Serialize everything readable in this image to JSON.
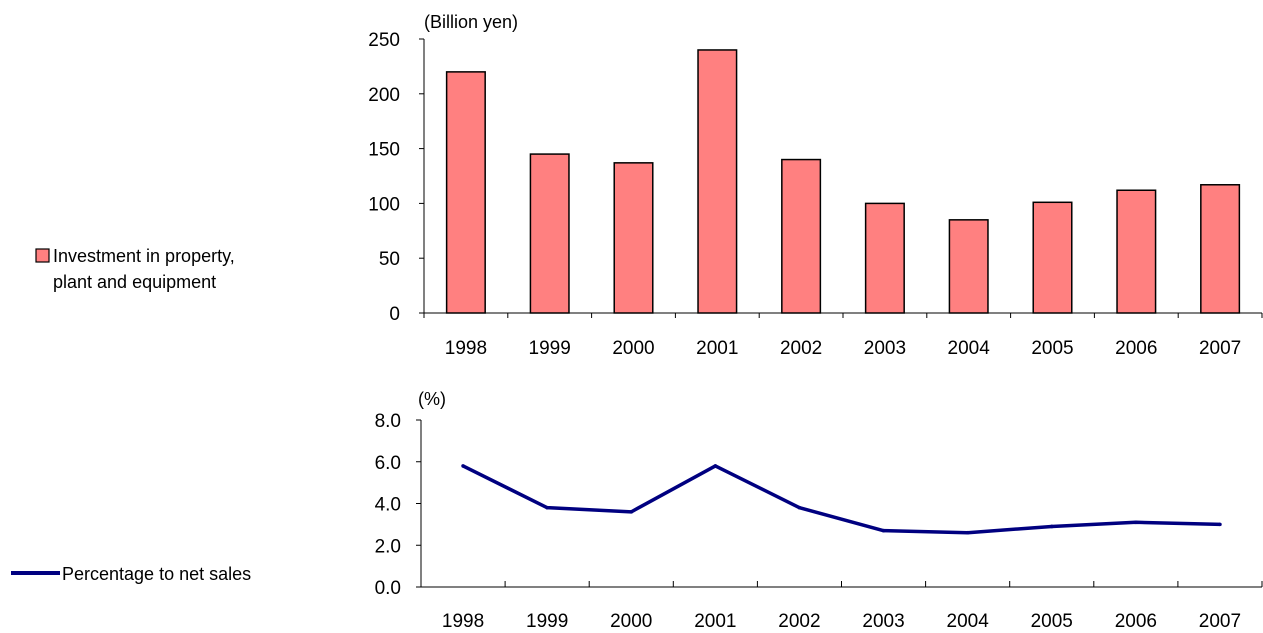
{
  "chart_data": [
    {
      "type": "bar",
      "unit_label": "(Billion yen)",
      "categories": [
        "1998",
        "1999",
        "2000",
        "2001",
        "2002",
        "2003",
        "2004",
        "2005",
        "2006",
        "2007"
      ],
      "series": [
        {
          "name": "Investment in property, plant and equipment",
          "name_lines": [
            "Investment in property,",
            "plant and equipment"
          ],
          "color": "#ff8080",
          "values": [
            220,
            145,
            137,
            240,
            140,
            100,
            85,
            101,
            112,
            117
          ]
        }
      ],
      "ylim": [
        0,
        250
      ],
      "yticks": [
        "0",
        "50",
        "100",
        "150",
        "200",
        "250"
      ],
      "legend_position": "left"
    },
    {
      "type": "line",
      "unit_label": "(%)",
      "categories": [
        "1998",
        "1999",
        "2000",
        "2001",
        "2002",
        "2003",
        "2004",
        "2005",
        "2006",
        "2007"
      ],
      "series": [
        {
          "name": "Percentage to net sales",
          "color": "#000080",
          "values": [
            5.8,
            3.8,
            3.6,
            5.8,
            3.8,
            2.7,
            2.6,
            2.9,
            3.1,
            3.0
          ]
        }
      ],
      "ylim": [
        0,
        8
      ],
      "yticks": [
        "0.0",
        "2.0",
        "4.0",
        "6.0",
        "8.0"
      ],
      "legend_position": "left"
    }
  ]
}
